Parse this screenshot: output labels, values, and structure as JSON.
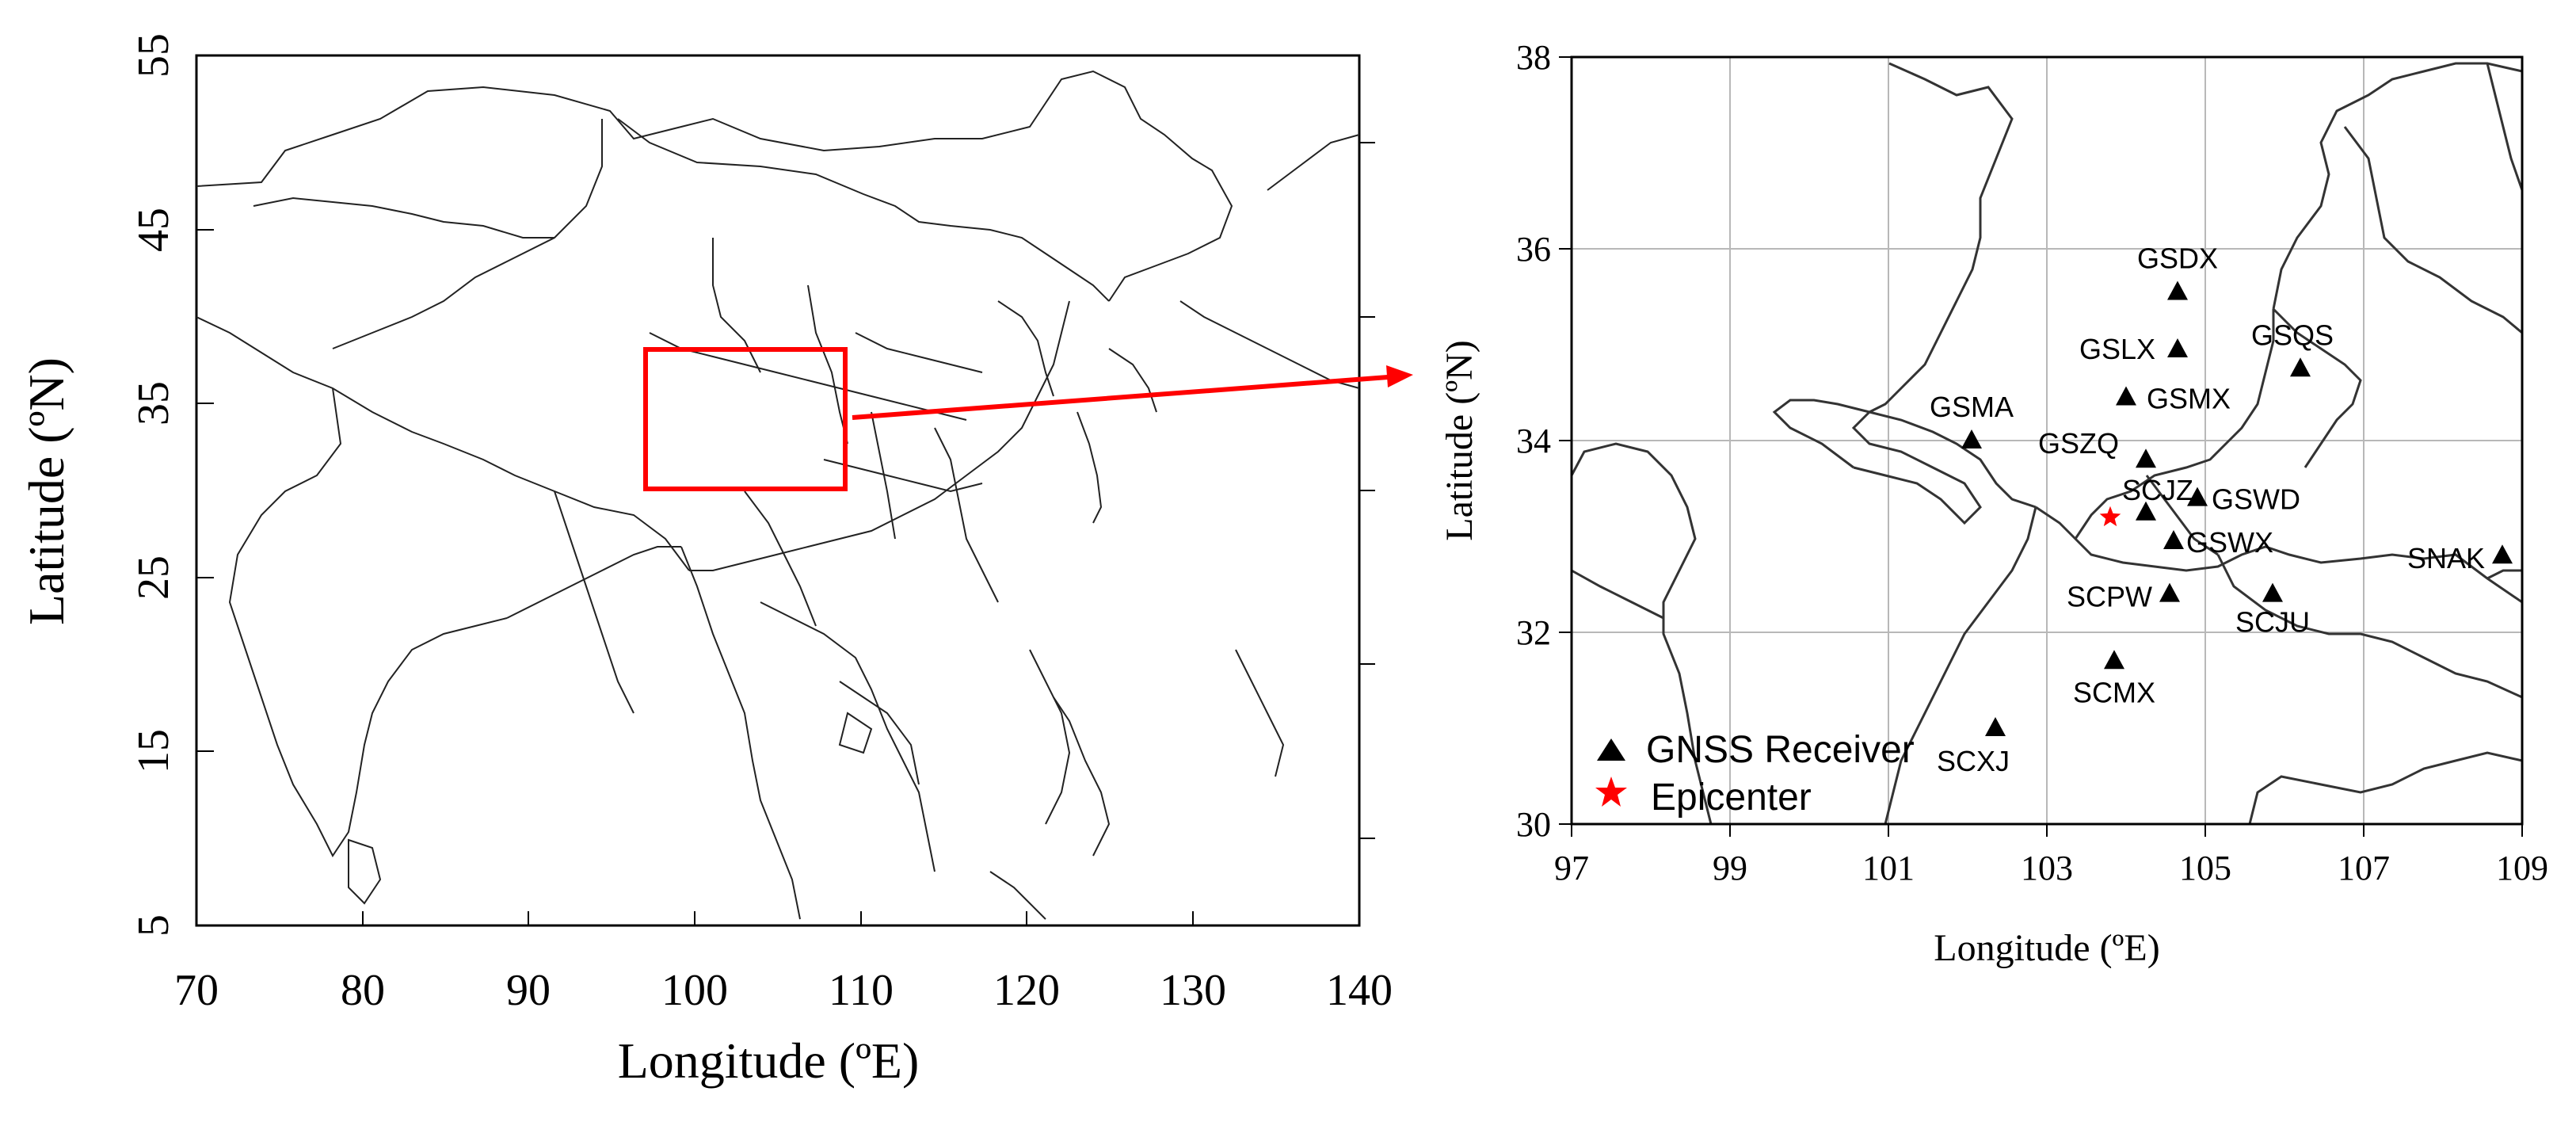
{
  "left_map": {
    "x_axis": {
      "label": "Longitude (ºE)",
      "range": [
        70,
        140
      ],
      "ticks": [
        "70",
        "80",
        "90",
        "100",
        "110",
        "120",
        "130",
        "140"
      ]
    },
    "y_axis": {
      "label": "Latitude (ºN)",
      "range": [
        5,
        55
      ],
      "ticks": [
        "5",
        "15",
        "25",
        "35",
        "45",
        "55"
      ]
    },
    "region_box": {
      "lon": [
        97,
        109
      ],
      "lat": [
        30,
        38
      ],
      "color": "#ff0000"
    }
  },
  "right_map": {
    "x_axis": {
      "label": "Longitude (ºE)",
      "range": [
        97,
        109
      ],
      "ticks": [
        "97",
        "99",
        "101",
        "103",
        "105",
        "107",
        "109"
      ]
    },
    "y_axis": {
      "label": "Latitude (ºN)",
      "range": [
        30,
        38
      ],
      "ticks": [
        "30",
        "32",
        "34",
        "36",
        "38"
      ]
    },
    "stations": [
      {
        "name": "GSDX",
        "lon": 104.65,
        "lat": 35.55
      },
      {
        "name": "GSLX",
        "lon": 104.65,
        "lat": 34.95
      },
      {
        "name": "GSQS",
        "lon": 106.2,
        "lat": 34.75
      },
      {
        "name": "GSMX",
        "lon": 104.0,
        "lat": 34.45
      },
      {
        "name": "GSMA",
        "lon": 102.05,
        "lat": 34.0
      },
      {
        "name": "GSZQ",
        "lon": 104.25,
        "lat": 33.8
      },
      {
        "name": "SCJZ",
        "lon": 104.25,
        "lat": 33.25
      },
      {
        "name": "GSWD",
        "lon": 104.9,
        "lat": 33.4
      },
      {
        "name": "GSWX",
        "lon": 104.6,
        "lat": 32.95
      },
      {
        "name": "SCPW",
        "lon": 104.55,
        "lat": 32.4
      },
      {
        "name": "SCJU",
        "lon": 105.85,
        "lat": 32.4
      },
      {
        "name": "SNAK",
        "lon": 108.75,
        "lat": 32.8
      },
      {
        "name": "SCMX",
        "lon": 103.85,
        "lat": 31.7
      },
      {
        "name": "SCXJ",
        "lon": 102.35,
        "lat": 31.0
      }
    ],
    "epicenter": {
      "lon": 103.8,
      "lat": 33.2
    },
    "legend": {
      "receiver_label": "GNSS Receiver",
      "epicenter_label": "Epicenter"
    }
  },
  "colors": {
    "box": "#ff0000",
    "arrow": "#ff0000",
    "epicenter": "#ff0000",
    "station": "#000000",
    "border": "#222222",
    "grid": "#b8b8b8"
  },
  "icons": {
    "station": "triangle-icon",
    "epicenter": "star-icon"
  }
}
